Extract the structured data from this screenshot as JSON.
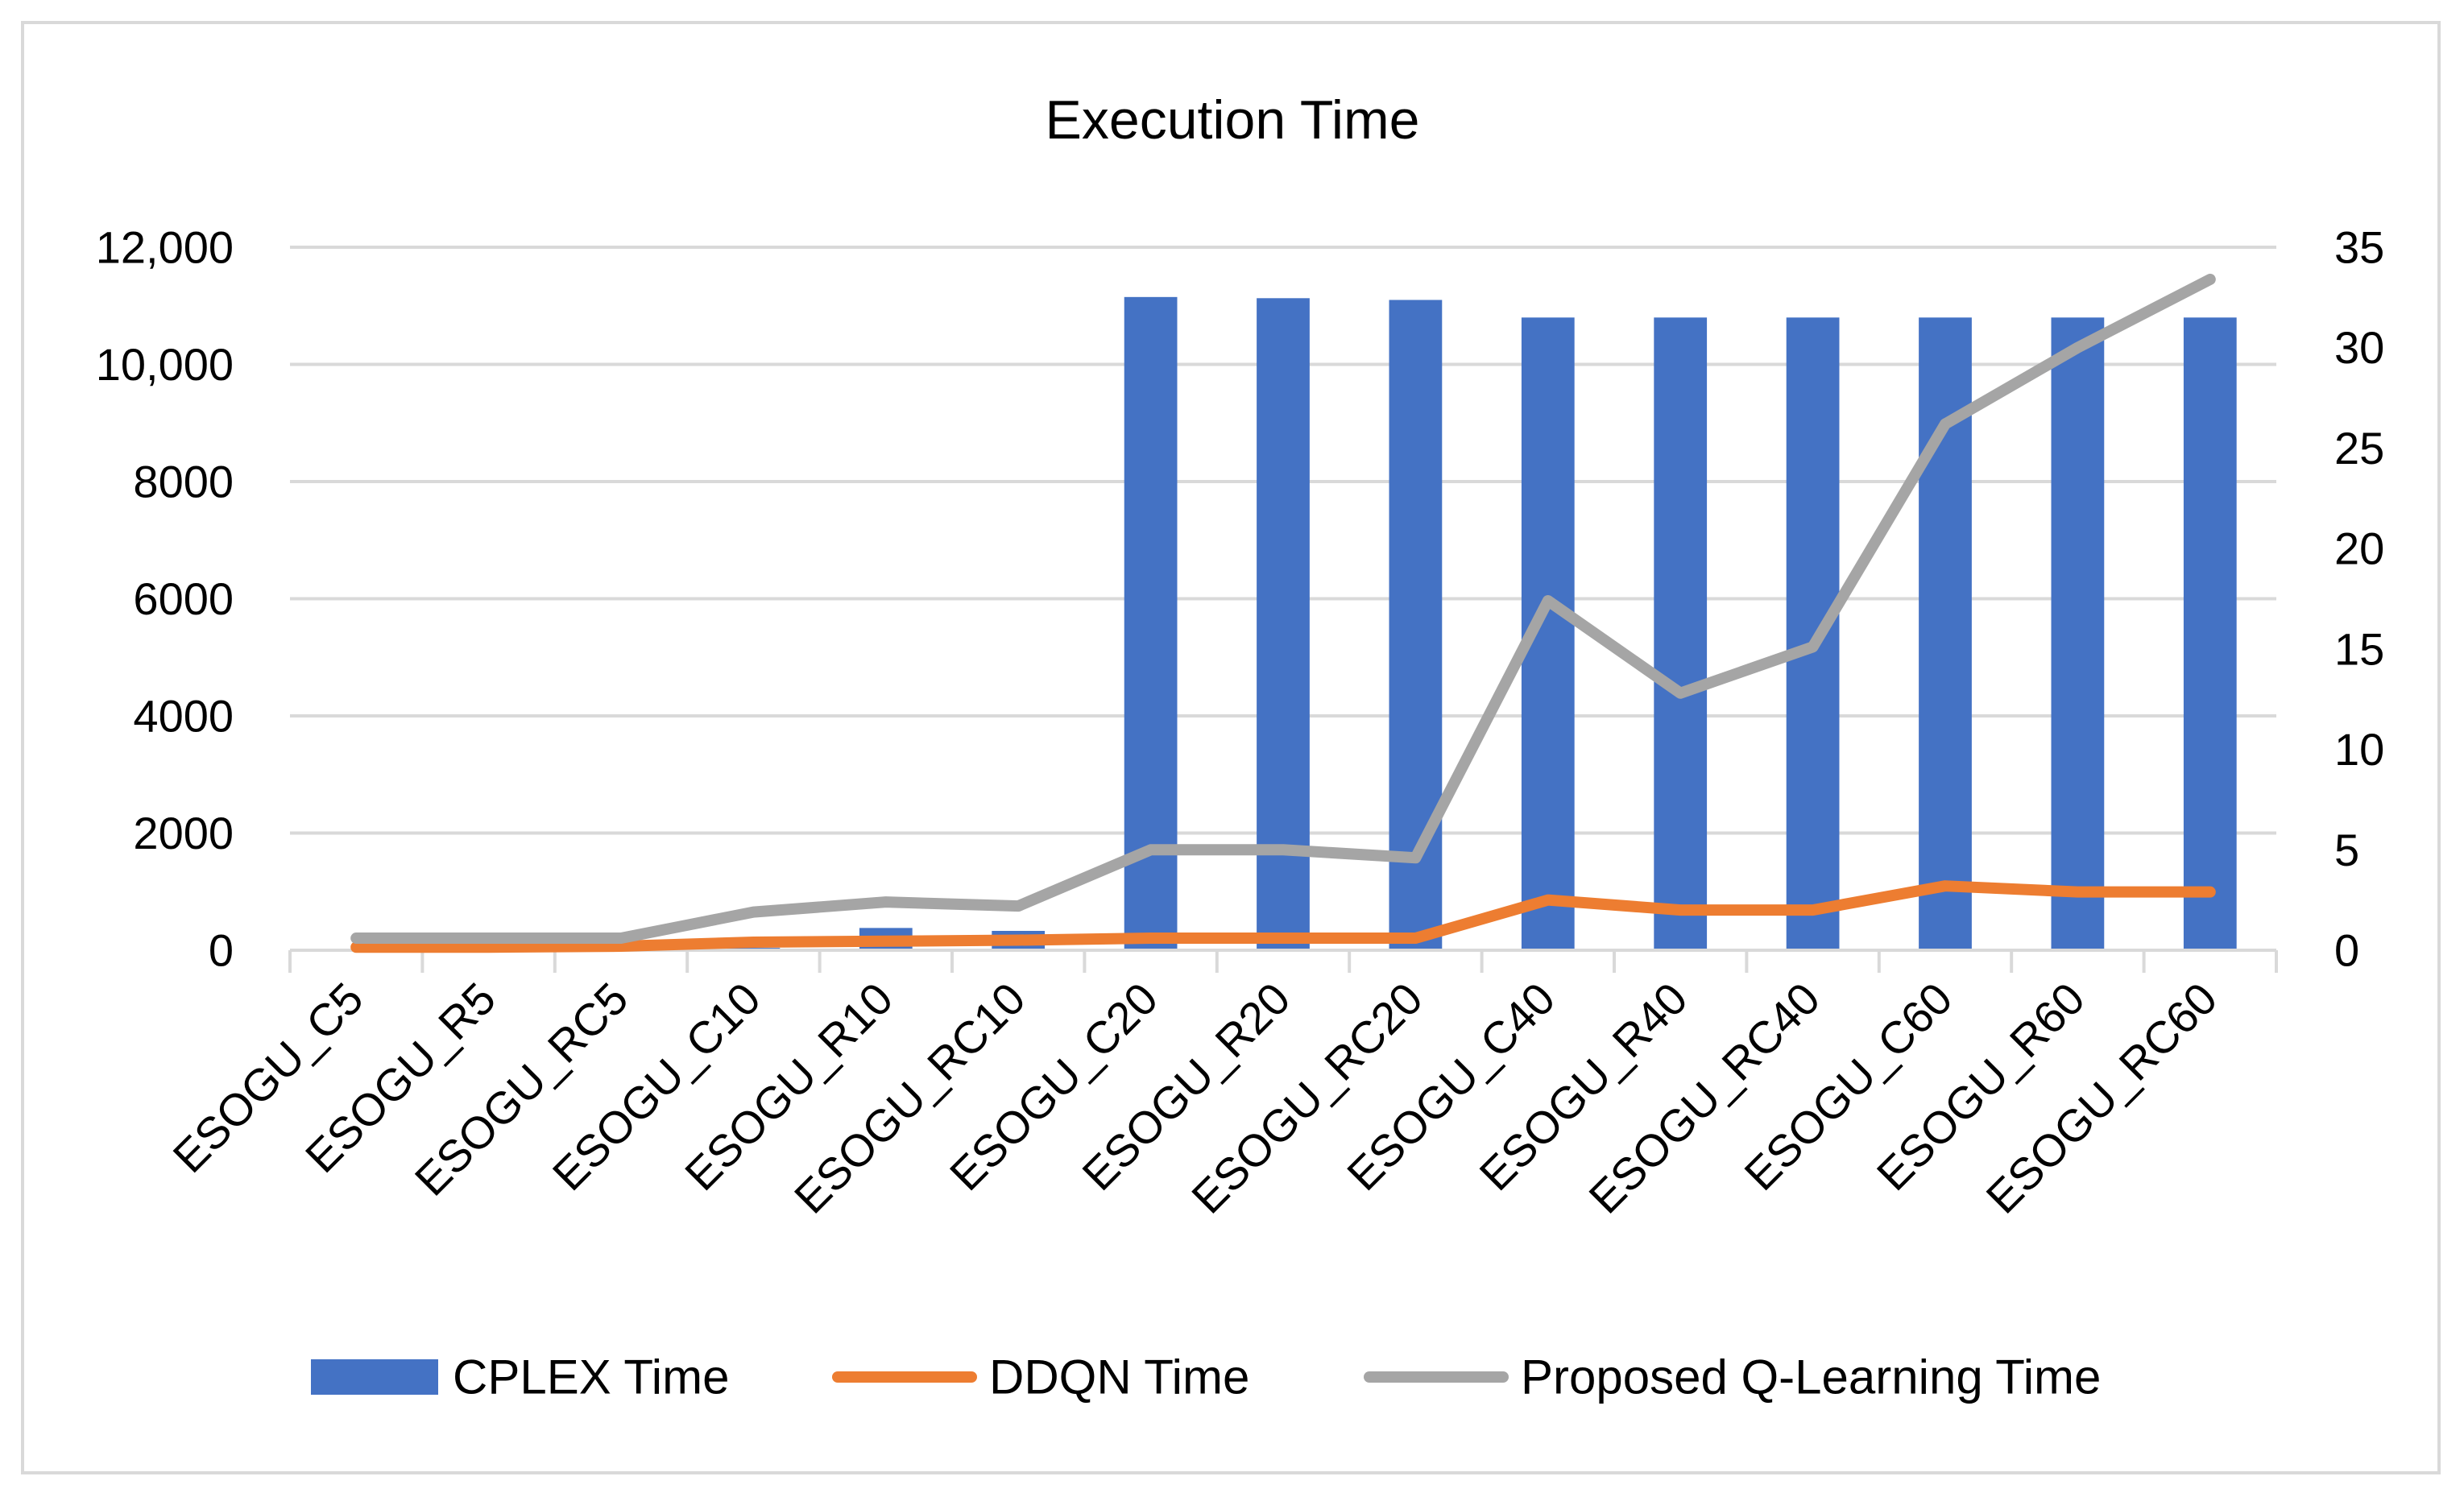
{
  "chart_data": {
    "type": "bar",
    "title": "Execution Time",
    "categories": [
      "ESOGU_C5",
      "ESOGU_R5",
      "ESOGU_RC5",
      "ESOGU_C10",
      "ESOGU_R10",
      "ESOGU_RC10",
      "ESOGU_C20",
      "ESOGU_R20",
      "ESOGU_RC20",
      "ESOGU_C40",
      "ESOGU_R40",
      "ESOGU_RC40",
      "ESOGU_C60",
      "ESOGU_R60",
      "ESOGU_RC60"
    ],
    "y_left": {
      "min": 0,
      "max": 12000,
      "ticks": [
        0,
        2000,
        4000,
        6000,
        8000,
        10000,
        12000
      ],
      "tick_labels": [
        "0",
        "2000",
        "4000",
        "6000",
        "8000",
        "10,000",
        "12,000"
      ]
    },
    "y_right": {
      "min": 0,
      "max": 35,
      "ticks": [
        0,
        5,
        10,
        15,
        20,
        25,
        30,
        35
      ],
      "tick_labels": [
        "0",
        "5",
        "10",
        "15",
        "20",
        "25",
        "30",
        "35"
      ]
    },
    "grid": true,
    "legend_position": "bottom",
    "series": [
      {
        "name": "CPLEX Time",
        "type": "bar",
        "axis": "left",
        "color": "#4472c4",
        "values": [
          8,
          10,
          12,
          40,
          380,
          330,
          11150,
          11130,
          11100,
          10800,
          10800,
          10800,
          10800,
          10800,
          10800
        ]
      },
      {
        "name": "DDQN Time",
        "type": "line",
        "axis": "right",
        "color": "#ed7d31",
        "values": [
          0.15,
          0.15,
          0.2,
          0.4,
          0.45,
          0.5,
          0.6,
          0.6,
          0.6,
          2.5,
          2.0,
          2.0,
          3.2,
          2.9,
          2.9
        ]
      },
      {
        "name": "Proposed Q-Learning Time",
        "type": "line",
        "axis": "right",
        "color": "#a5a5a5",
        "values": [
          0.6,
          0.6,
          0.6,
          1.9,
          2.4,
          2.2,
          5.0,
          5.0,
          4.6,
          17.4,
          12.8,
          15.1,
          26.2,
          30.0,
          33.4
        ]
      }
    ]
  }
}
